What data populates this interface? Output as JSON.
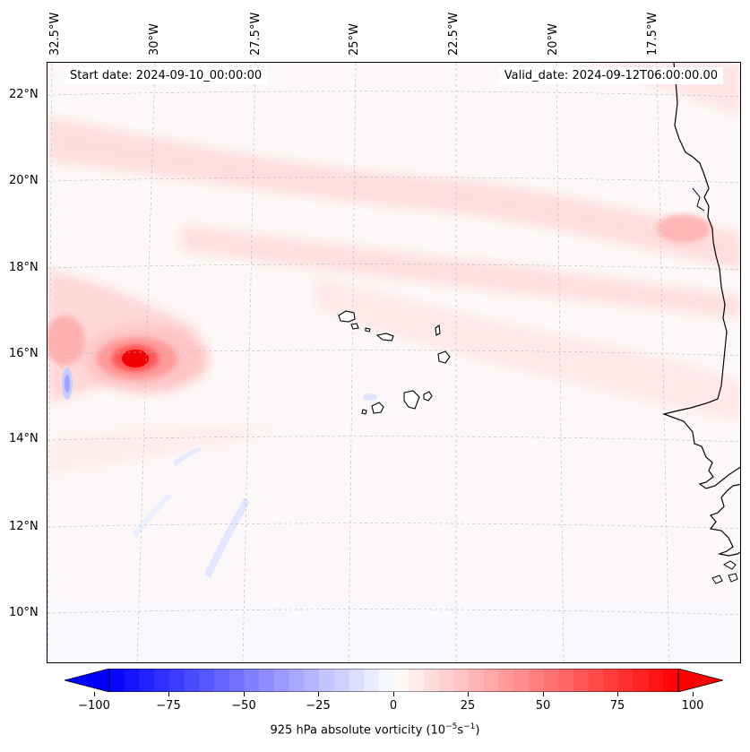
{
  "map": {
    "start_date": "Start date: 2024-09-10_00:00:00",
    "valid_date": "Valid_date: 2024-09-12T06:00:00.00",
    "lon_labels": [
      "32.5°W",
      "30°W",
      "27.5°W",
      "25°W",
      "22.5°W",
      "20°W",
      "17.5°W"
    ],
    "lat_labels": [
      "22°N",
      "20°N",
      "18°N",
      "16°N",
      "14°N",
      "12°N",
      "10°N"
    ],
    "colors": {
      "positive": "#ff0000",
      "negative": "#0000ff",
      "coast": "#000000"
    }
  },
  "colorbar": {
    "label_prefix": "925 hPa absolute vorticity (10",
    "label_exp1": "−5",
    "label_mid": "s",
    "label_exp2": "−1",
    "label_suffix": ")",
    "min": -100,
    "max": 100,
    "ticks": [
      "−100",
      "−75",
      "−50",
      "−25",
      "0",
      "25",
      "50",
      "75",
      "100"
    ]
  }
}
